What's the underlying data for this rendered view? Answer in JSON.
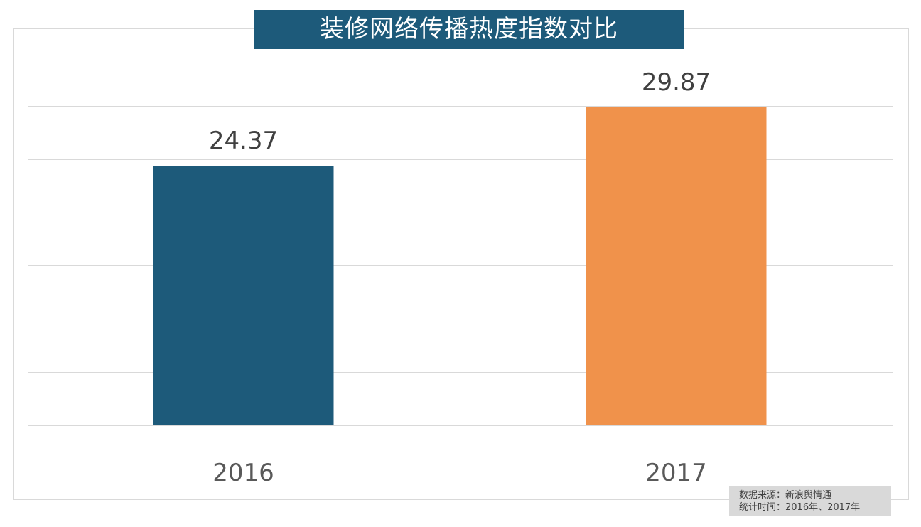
{
  "chart_data": {
    "type": "bar",
    "title": "装修网络传播热度指数对比",
    "categories": [
      "2016",
      "2017"
    ],
    "values": [
      24.37,
      29.87
    ],
    "data_labels": [
      "24.37",
      "29.87"
    ],
    "colors": [
      "#1d5a7a",
      "#f0924b"
    ],
    "ylim": [
      0,
      35
    ],
    "grid_step": 5,
    "grid": true,
    "y_tick_labels_shown": false,
    "xlabel": "",
    "ylabel": ""
  },
  "source": {
    "line1": "数据来源：新浪舆情通",
    "line2": "统计时间：2016年、2017年"
  }
}
